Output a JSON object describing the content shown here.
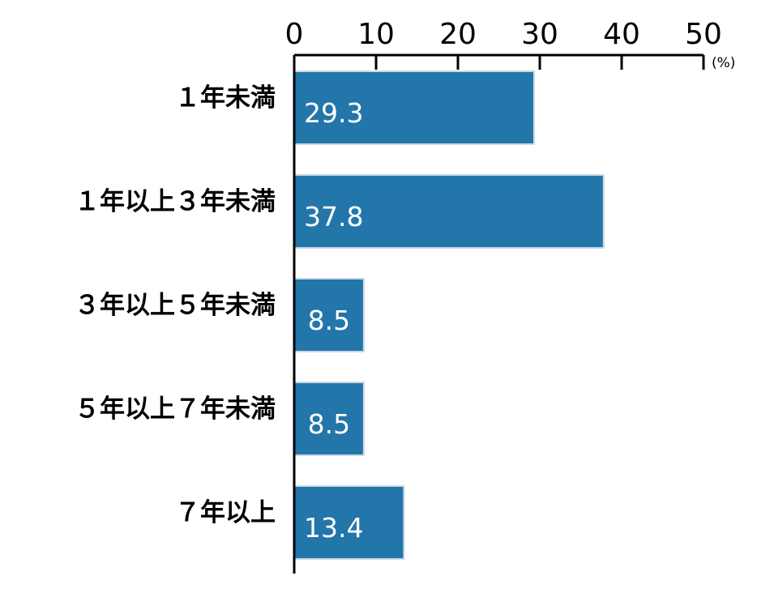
{
  "chart_data": {
    "type": "bar",
    "orientation": "horizontal",
    "categories": [
      "１年未満",
      "１年以上３年未満",
      "３年以上５年未満",
      "５年以上７年未満",
      "７年以上"
    ],
    "values": [
      29.3,
      37.8,
      8.5,
      8.5,
      13.4
    ],
    "value_labels": [
      "29.3",
      "37.8",
      "8.5",
      "8.5",
      "13.4"
    ],
    "xlim": [
      0,
      50
    ],
    "x_ticks": [
      "0",
      "10",
      "20",
      "30",
      "40",
      "50"
    ],
    "unit": "(%)",
    "axis_position": "top",
    "grid": false,
    "bar_color": "#2376aa",
    "bar_edge_color": "#c9d8e6"
  }
}
